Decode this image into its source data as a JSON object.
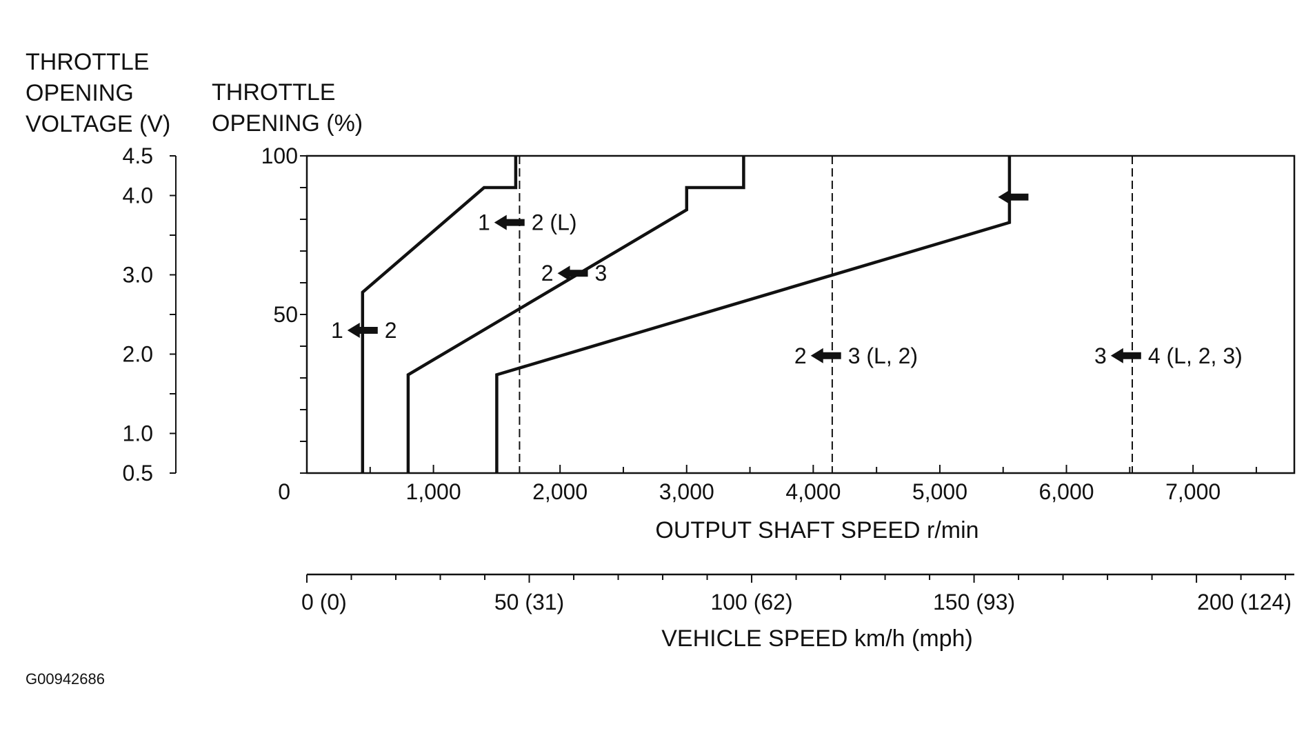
{
  "chart_data": {
    "type": "line",
    "figure_id": "G00942686",
    "left_axis": {
      "label_lines": [
        "THROTTLE",
        "OPENING",
        "VOLTAGE (V)"
      ],
      "ticks": [
        "4.5",
        "4.0",
        "3.0",
        "2.0",
        "1.0",
        "0.5"
      ],
      "tick_values": [
        4.5,
        4.0,
        3.0,
        2.0,
        1.0,
        0.5
      ]
    },
    "y_axis": {
      "label_lines": [
        "THROTTLE",
        "OPENING (%)"
      ],
      "ticks": [
        "100",
        "50",
        "0"
      ],
      "tick_values": [
        100,
        50,
        0
      ],
      "ylim": [
        0,
        100
      ]
    },
    "x_axis": {
      "label": "OUTPUT SHAFT SPEED r/min",
      "ticks": [
        "1,000",
        "2,000",
        "3,000",
        "4,000",
        "5,000",
        "6,000",
        "7,000"
      ],
      "tick_values": [
        1000,
        2000,
        3000,
        4000,
        5000,
        6000,
        7000
      ],
      "xlim": [
        0,
        7800
      ]
    },
    "vehicle_speed_axis": {
      "label": "VEHICLE SPEED km/h (mph)",
      "ticks": [
        "0 (0)",
        "50 (31)",
        "100 (62)",
        "150 (93)",
        "200 (124)"
      ],
      "tick_values_kmh": [
        0,
        50,
        100,
        150,
        200
      ],
      "max_kmh": 222
    },
    "solid_series": [
      {
        "points": [
          [
            440,
            0
          ],
          [
            440,
            57
          ],
          [
            1400,
            90
          ],
          [
            1650,
            90
          ],
          [
            1650,
            100
          ]
        ]
      },
      {
        "points": [
          [
            800,
            0
          ],
          [
            800,
            31
          ],
          [
            3000,
            83
          ],
          [
            3000,
            90
          ],
          [
            3450,
            90
          ],
          [
            3450,
            100
          ]
        ]
      },
      {
        "points": [
          [
            1500,
            0
          ],
          [
            1500,
            31
          ],
          [
            5550,
            79
          ],
          [
            5550,
            100
          ]
        ]
      }
    ],
    "dashed_series": [
      {
        "x": 1680,
        "ylim": [
          0,
          100
        ]
      },
      {
        "x": 4150,
        "ylim": [
          0,
          100
        ]
      },
      {
        "x": 6520,
        "ylim": [
          0,
          100
        ]
      }
    ],
    "annotations": [
      {
        "from": "1",
        "to": "2 (L)",
        "x": 1600,
        "y": 79
      },
      {
        "from": "2",
        "to": "3",
        "x": 2100,
        "y": 63
      },
      {
        "from": "1",
        "to": "2",
        "x": 440,
        "y": 45
      },
      {
        "from": "2",
        "to": "3 (L, 2)",
        "x": 4100,
        "y": 37
      },
      {
        "from": "3",
        "to": "4 (L, 2, 3)",
        "x": 6470,
        "y": 37
      },
      {
        "from": "",
        "to": "",
        "x": 5580,
        "y": 87
      }
    ]
  }
}
